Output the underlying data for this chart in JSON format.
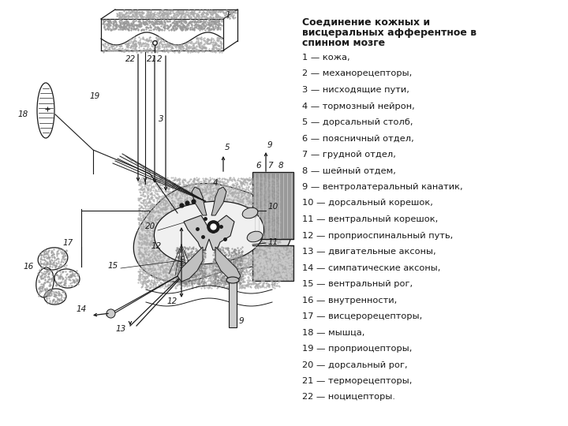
{
  "title_line1": "Соединение кожных и",
  "title_line2": "висцеральных афферентное в",
  "title_line3": "спинном мозге",
  "legend_items": [
    "1 — кожа,",
    "2 — механорецепторы,",
    "3 — нисходящие пути,",
    "4 — тормозный нейрон,",
    "5 — дорсальный столб,",
    "6 — поясничный отдел,",
    "7 — грудной отдел,",
    "8 — шейный отдем,",
    "9 — вентролатеральный канатик,",
    "10 — дорсальный корешок,",
    "11 — вентральный корешок,",
    "12 — проприоспинальный путь,",
    "13 — двигательные аксоны,",
    "14 — симпатические аксоны,",
    "15 — вентральный рог,",
    "16 — внутренности,",
    "17 — висцерорецепторы,",
    "18 — мышца,",
    "19 — проприоцепторы,",
    "20 — дорсальный рог,",
    "21 — терморецепторы,",
    "22 — ноцицепторы."
  ],
  "bg_color": "#ffffff",
  "dc": "#1a1a1a"
}
